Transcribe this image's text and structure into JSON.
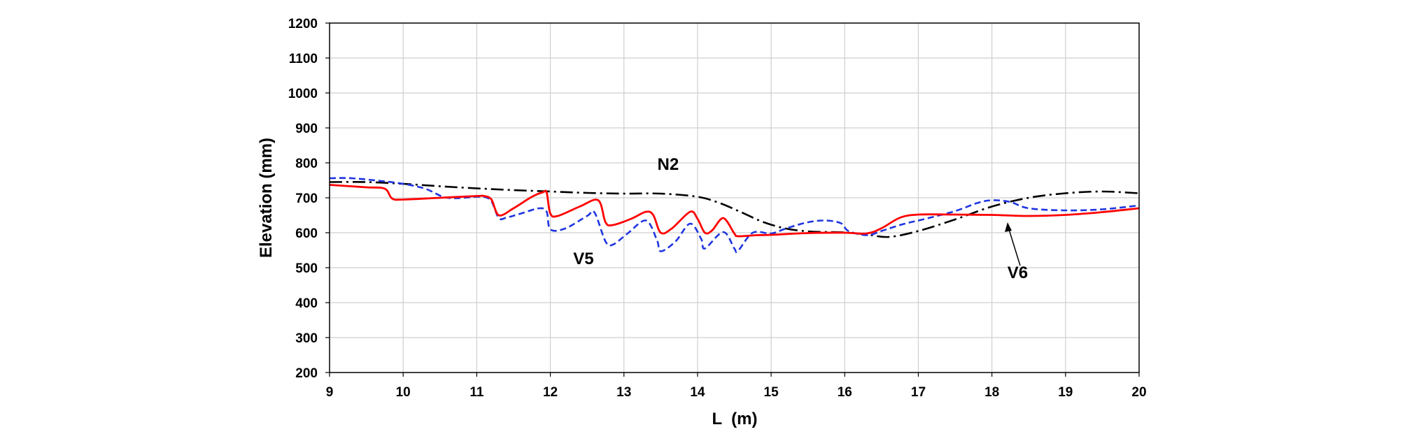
{
  "chart_data": {
    "type": "line",
    "title": "",
    "xlabel": "L  (m)",
    "ylabel": "Elevation (mm)",
    "xlim": [
      9,
      20
    ],
    "ylim": [
      200,
      1200
    ],
    "xticks": [
      "9",
      "10",
      "11",
      "12",
      "13",
      "14",
      "15",
      "16",
      "17",
      "18",
      "19",
      "20"
    ],
    "yticks": [
      "200",
      "300",
      "400",
      "500",
      "600",
      "700",
      "800",
      "900",
      "1000",
      "1100",
      "1200"
    ],
    "grid": true,
    "legend": "none",
    "series": [
      {
        "name": "N2",
        "color": "#000000",
        "style": "dash-dot",
        "points": [
          [
            9,
            745
          ],
          [
            9.5,
            745
          ],
          [
            10,
            740
          ],
          [
            10.5,
            733
          ],
          [
            11,
            727
          ],
          [
            11.5,
            722
          ],
          [
            12,
            718
          ],
          [
            12.5,
            714
          ],
          [
            13,
            712
          ],
          [
            13.5,
            712
          ],
          [
            14,
            703
          ],
          [
            14.3,
            685
          ],
          [
            14.6,
            658
          ],
          [
            14.9,
            630
          ],
          [
            15.2,
            612
          ],
          [
            15.5,
            604
          ],
          [
            15.8,
            602
          ],
          [
            16,
            601
          ],
          [
            16.3,
            595
          ],
          [
            16.6,
            588
          ],
          [
            17,
            605
          ],
          [
            17.5,
            638
          ],
          [
            18,
            675
          ],
          [
            18.5,
            700
          ],
          [
            19,
            713
          ],
          [
            19.5,
            718
          ],
          [
            20,
            713
          ]
        ]
      },
      {
        "name": "V5",
        "color": "#1f35e0",
        "style": "dashed",
        "points": [
          [
            9,
            756
          ],
          [
            9.3,
            756
          ],
          [
            9.7,
            748
          ],
          [
            10,
            740
          ],
          [
            10.3,
            726
          ],
          [
            10.6,
            700
          ],
          [
            11,
            703
          ],
          [
            11.1,
            703
          ],
          [
            11.2,
            690
          ],
          [
            11.3,
            642
          ],
          [
            11.4,
            643
          ],
          [
            11.6,
            655
          ],
          [
            11.85,
            670
          ],
          [
            11.95,
            660
          ],
          [
            12,
            610
          ],
          [
            12.2,
            612
          ],
          [
            12.5,
            648
          ],
          [
            12.6,
            658
          ],
          [
            12.75,
            575
          ],
          [
            12.85,
            566
          ],
          [
            13.05,
            598
          ],
          [
            13.3,
            635
          ],
          [
            13.45,
            578
          ],
          [
            13.5,
            547
          ],
          [
            13.7,
            575
          ],
          [
            13.9,
            626
          ],
          [
            14.05,
            582
          ],
          [
            14.1,
            555
          ],
          [
            14.35,
            602
          ],
          [
            14.5,
            555
          ],
          [
            14.55,
            548
          ],
          [
            14.75,
            600
          ],
          [
            15,
            598
          ],
          [
            15.2,
            612
          ],
          [
            15.5,
            630
          ],
          [
            15.75,
            635
          ],
          [
            15.95,
            627
          ],
          [
            16.05,
            605
          ],
          [
            16.3,
            593
          ],
          [
            16.5,
            605
          ],
          [
            16.8,
            625
          ],
          [
            17.1,
            640
          ],
          [
            17.5,
            662
          ],
          [
            17.8,
            685
          ],
          [
            18,
            693
          ],
          [
            18.25,
            688
          ],
          [
            18.5,
            670
          ],
          [
            19,
            664
          ],
          [
            19.5,
            667
          ],
          [
            20,
            678
          ]
        ]
      },
      {
        "name": "V6",
        "color": "#ff0000",
        "style": "solid",
        "points": [
          [
            9,
            737
          ],
          [
            9.5,
            730
          ],
          [
            9.75,
            726
          ],
          [
            9.85,
            698
          ],
          [
            10,
            695
          ],
          [
            10.5,
            700
          ],
          [
            11,
            705
          ],
          [
            11.1,
            705
          ],
          [
            11.2,
            695
          ],
          [
            11.3,
            650
          ],
          [
            11.5,
            670
          ],
          [
            11.75,
            703
          ],
          [
            11.9,
            716
          ],
          [
            11.95,
            715
          ],
          [
            12,
            655
          ],
          [
            12.1,
            648
          ],
          [
            12.4,
            675
          ],
          [
            12.65,
            693
          ],
          [
            12.75,
            630
          ],
          [
            12.85,
            622
          ],
          [
            13.1,
            640
          ],
          [
            13.3,
            660
          ],
          [
            13.4,
            650
          ],
          [
            13.5,
            600
          ],
          [
            13.65,
            612
          ],
          [
            13.9,
            660
          ],
          [
            14,
            640
          ],
          [
            14.1,
            600
          ],
          [
            14.2,
            607
          ],
          [
            14.35,
            642
          ],
          [
            14.5,
            598
          ],
          [
            14.55,
            590
          ],
          [
            14.8,
            593
          ],
          [
            15,
            594
          ],
          [
            15.5,
            599
          ],
          [
            16,
            600
          ],
          [
            16.3,
            598
          ],
          [
            16.5,
            613
          ],
          [
            16.75,
            643
          ],
          [
            17,
            652
          ],
          [
            17.5,
            652
          ],
          [
            18,
            651
          ],
          [
            18.5,
            648
          ],
          [
            19,
            651
          ],
          [
            19.5,
            659
          ],
          [
            20,
            670
          ]
        ]
      }
    ],
    "annotations": [
      {
        "text": "N2",
        "x": 13.6,
        "y": 780
      },
      {
        "text": "V5",
        "x": 12.45,
        "y": 510
      },
      {
        "text": "V6",
        "x": 18.35,
        "y": 470
      }
    ]
  }
}
